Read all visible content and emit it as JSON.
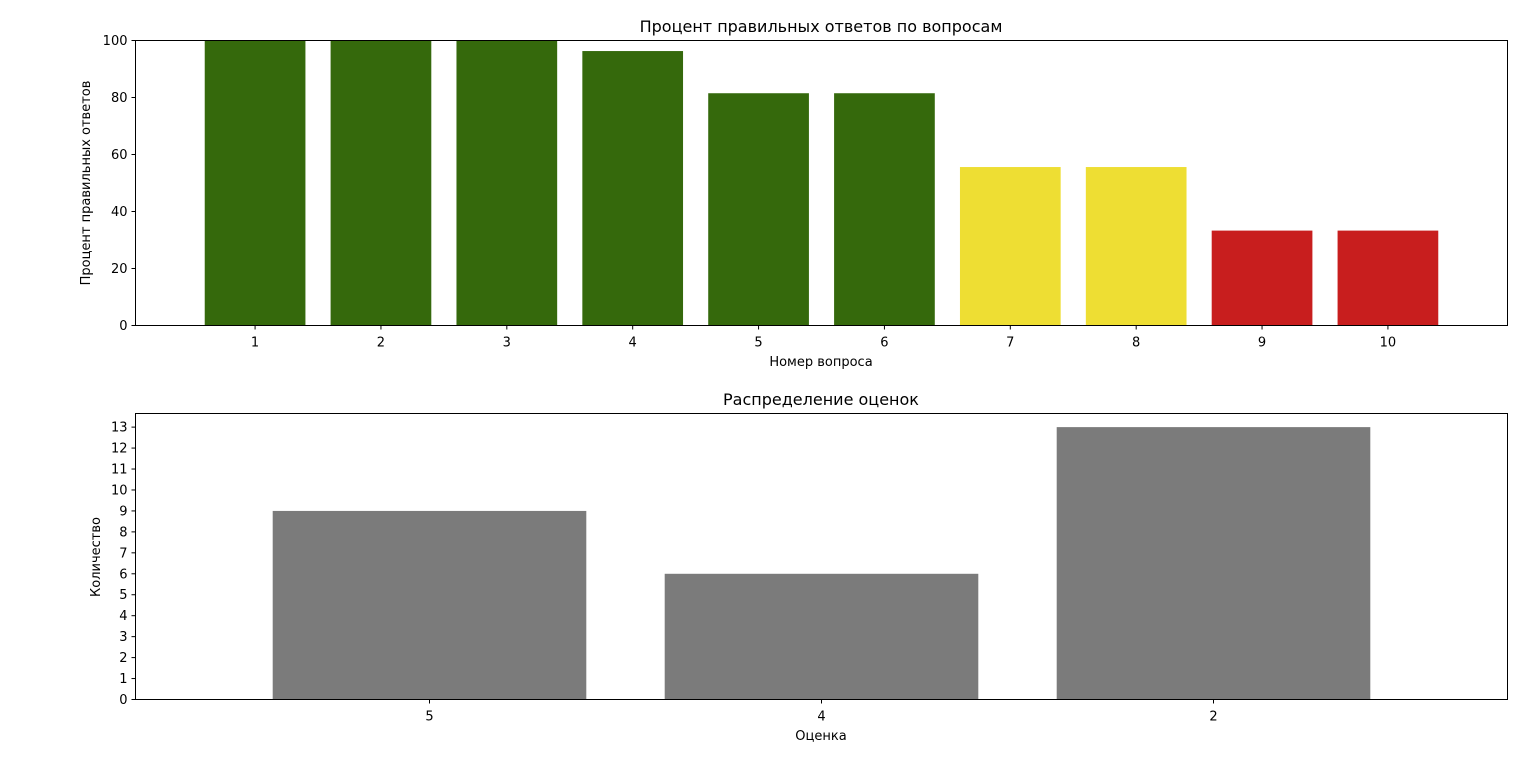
{
  "chart_data": [
    {
      "type": "bar",
      "title": "Процент правильных ответов по вопросам",
      "xlabel": "Номер вопроса",
      "ylabel": "Процент правильных ответов",
      "categories": [
        "1",
        "2",
        "3",
        "4",
        "5",
        "6",
        "7",
        "8",
        "9",
        "10"
      ],
      "values": [
        100,
        100,
        100,
        96.3,
        81.5,
        81.5,
        55.6,
        55.6,
        33.3,
        33.3
      ],
      "bar_colors": [
        "#35690c",
        "#35690c",
        "#35690c",
        "#35690c",
        "#35690c",
        "#35690c",
        "#eede33",
        "#eede33",
        "#c81e1e",
        "#c81e1e"
      ],
      "ylim": [
        0,
        100
      ],
      "yticks": [
        0,
        20,
        40,
        60,
        80,
        100
      ],
      "grid": false
    },
    {
      "type": "bar",
      "title": "Распределение оценок",
      "xlabel": "Оценка",
      "ylabel": "Количество",
      "categories": [
        "5",
        "4",
        "2"
      ],
      "values": [
        9,
        6,
        13
      ],
      "bar_colors": [
        "#7b7b7b",
        "#7b7b7b",
        "#7b7b7b"
      ],
      "ylim": [
        0,
        13.65
      ],
      "yticks": [
        0,
        1,
        2,
        3,
        4,
        5,
        6,
        7,
        8,
        9,
        10,
        11,
        12,
        13
      ],
      "grid": false
    }
  ]
}
